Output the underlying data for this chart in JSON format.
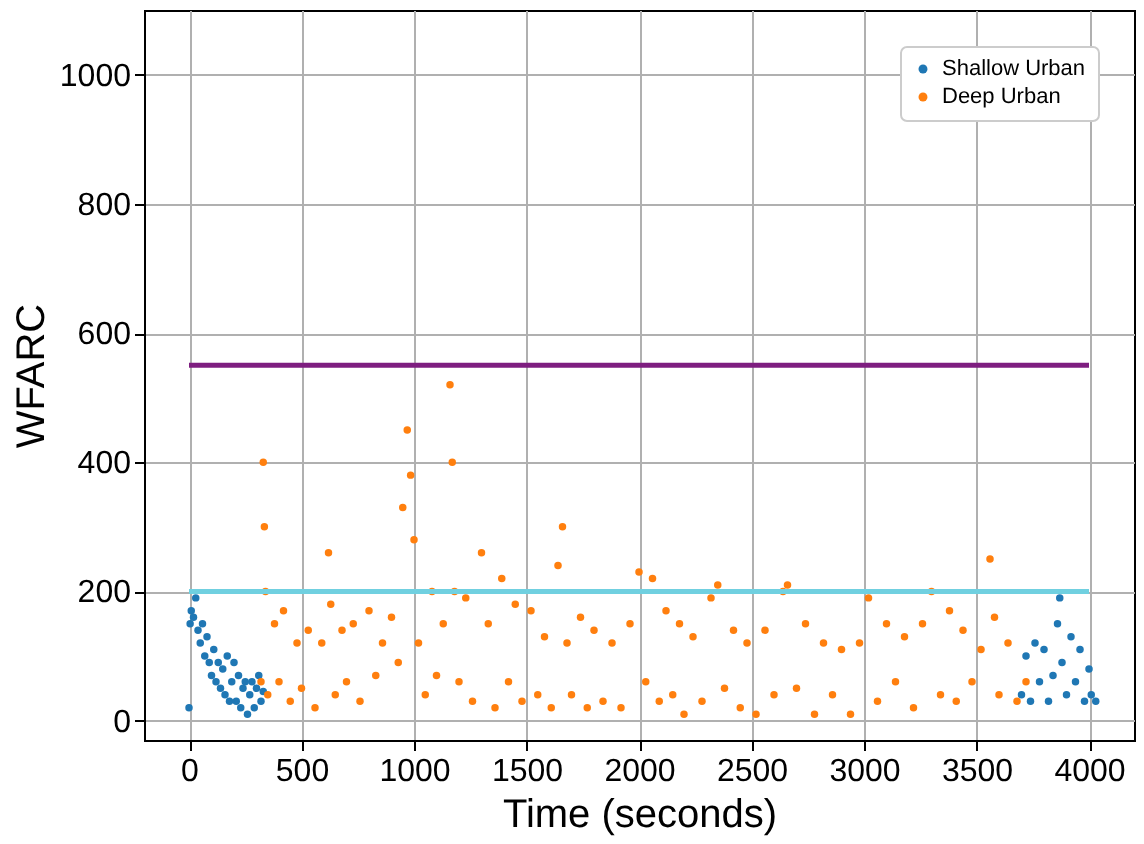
{
  "chart_data": {
    "type": "scatter",
    "xlabel": "Time (seconds)",
    "ylabel": "WFARC",
    "xlim": [
      -200,
      4200
    ],
    "ylim": [
      -30,
      1100
    ],
    "xticks": [
      0,
      500,
      1000,
      1500,
      2000,
      2500,
      3000,
      3500,
      4000
    ],
    "yticks": [
      0,
      200,
      400,
      600,
      800,
      1000
    ],
    "grid": true,
    "legend": "top right",
    "marker": "circle",
    "series": [
      {
        "name": "Shallow Urban",
        "color": "#1f77b4",
        "x": [
          0,
          5,
          10,
          20,
          30,
          40,
          50,
          60,
          70,
          80,
          90,
          100,
          110,
          120,
          130,
          140,
          150,
          160,
          170,
          180,
          190,
          200,
          210,
          220,
          230,
          240,
          250,
          260,
          270,
          280,
          290,
          300,
          310,
          320,
          330,
          3700,
          3720,
          3740,
          3760,
          3780,
          3800,
          3820,
          3840,
          3860,
          3870,
          3880,
          3900,
          3920,
          3940,
          3960,
          3980,
          4000,
          4010,
          4030
        ],
        "values": [
          20,
          150,
          170,
          160,
          190,
          140,
          120,
          150,
          100,
          130,
          90,
          70,
          110,
          60,
          90,
          50,
          80,
          40,
          100,
          30,
          60,
          90,
          30,
          70,
          20,
          50,
          60,
          10,
          40,
          60,
          20,
          50,
          70,
          30,
          45,
          40,
          100,
          30,
          120,
          60,
          110,
          30,
          70,
          150,
          190,
          90,
          40,
          130,
          60,
          110,
          30,
          80,
          40,
          30
        ]
      },
      {
        "name": "Deep Urban",
        "color": "#ff7f0e",
        "x": [
          320,
          330,
          335,
          340,
          350,
          380,
          400,
          420,
          450,
          480,
          500,
          530,
          560,
          590,
          620,
          630,
          650,
          680,
          700,
          730,
          760,
          800,
          830,
          860,
          900,
          930,
          950,
          970,
          985,
          1000,
          1020,
          1050,
          1080,
          1100,
          1130,
          1160,
          1170,
          1180,
          1200,
          1230,
          1260,
          1300,
          1330,
          1360,
          1390,
          1420,
          1450,
          1480,
          1520,
          1550,
          1580,
          1610,
          1640,
          1660,
          1680,
          1700,
          1740,
          1770,
          1800,
          1840,
          1880,
          1920,
          1960,
          2000,
          2030,
          2060,
          2090,
          2120,
          2150,
          2180,
          2200,
          2240,
          2280,
          2320,
          2350,
          2380,
          2420,
          2450,
          2480,
          2520,
          2560,
          2600,
          2640,
          2660,
          2700,
          2740,
          2780,
          2820,
          2860,
          2900,
          2940,
          2980,
          3020,
          3060,
          3100,
          3140,
          3180,
          3220,
          3260,
          3300,
          3340,
          3380,
          3410,
          3440,
          3480,
          3520,
          3560,
          3580,
          3600,
          3640,
          3680,
          3720
        ],
        "values": [
          60,
          400,
          300,
          200,
          40,
          150,
          60,
          170,
          30,
          120,
          50,
          140,
          20,
          120,
          260,
          180,
          40,
          140,
          60,
          150,
          30,
          170,
          70,
          120,
          160,
          90,
          330,
          450,
          380,
          280,
          120,
          40,
          200,
          70,
          150,
          520,
          400,
          200,
          60,
          190,
          30,
          260,
          150,
          20,
          220,
          60,
          180,
          30,
          170,
          40,
          130,
          20,
          240,
          300,
          120,
          40,
          160,
          20,
          140,
          30,
          120,
          20,
          150,
          230,
          60,
          220,
          30,
          170,
          40,
          150,
          10,
          130,
          30,
          190,
          210,
          50,
          140,
          20,
          120,
          10,
          140,
          40,
          200,
          210,
          50,
          150,
          10,
          120,
          40,
          110,
          10,
          120,
          190,
          30,
          150,
          60,
          130,
          20,
          150,
          200,
          40,
          170,
          30,
          140,
          60,
          110,
          250,
          160,
          40,
          120,
          30,
          60
        ]
      },
      {
        "type": "line",
        "marker": "none",
        "color": "#7e1e80",
        "x": [
          0,
          4000
        ],
        "values": [
          550,
          550
        ]
      },
      {
        "type": "line",
        "marker": "none",
        "color": "#70d0e0",
        "x": [
          0,
          4000
        ],
        "values": [
          200,
          200
        ]
      }
    ]
  }
}
